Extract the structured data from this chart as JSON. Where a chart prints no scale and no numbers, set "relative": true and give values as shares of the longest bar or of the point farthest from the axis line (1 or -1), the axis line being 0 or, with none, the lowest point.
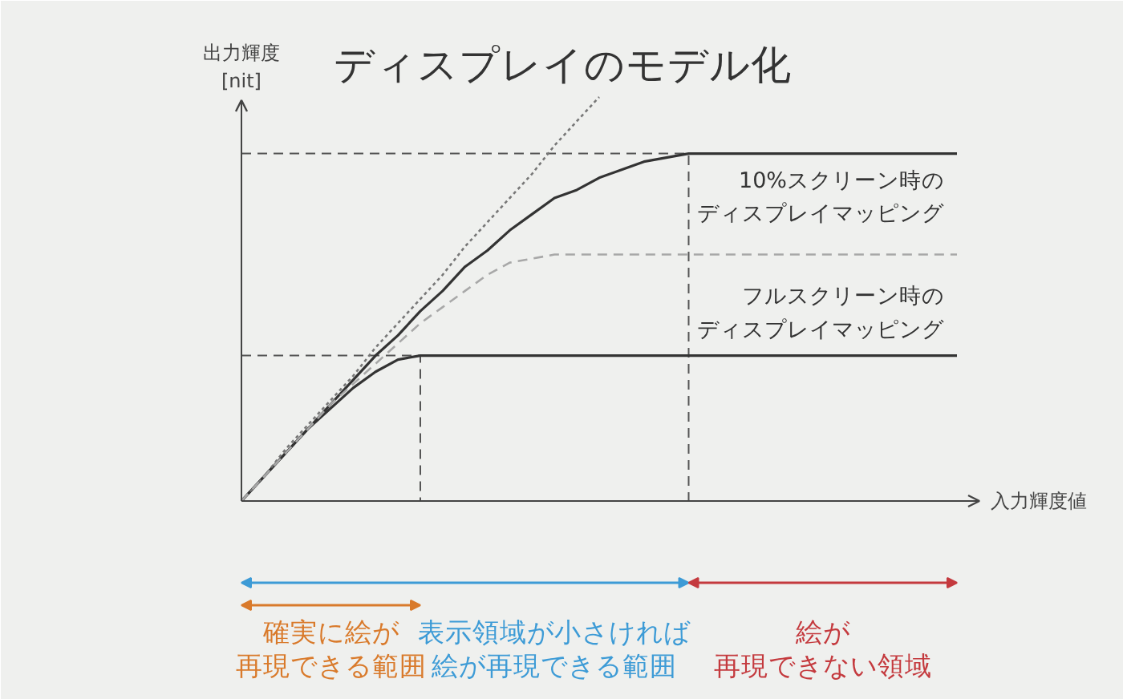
{
  "chart_data": {
    "type": "line",
    "title": "ディスプレイのモデル化",
    "xlabel": "入力輝度値",
    "ylabel": "出力輝度\n[nit]",
    "relative": true,
    "categories": [
      null,
      null,
      null,
      null,
      null,
      null,
      null,
      null,
      null,
      null,
      null,
      null,
      null,
      null,
      null,
      null,
      null,
      null,
      null,
      null,
      null,
      null,
      null,
      null,
      null,
      null,
      null,
      null,
      null,
      null,
      null,
      null,
      null
    ],
    "series": [
      {
        "name": "10%スクリーン時のディスプレイマッピング",
        "color": "#333333",
        "values": [
          0,
          0.06,
          0.12,
          0.18,
          0.24,
          0.3,
          0.36,
          0.41,
          0.47,
          0.52,
          0.58,
          0.62,
          0.67,
          0.71,
          0.75,
          0.77,
          0.8,
          0.82,
          0.84,
          0.85,
          0.86,
          0.86,
          0.86,
          0.86,
          0.86,
          0.86,
          0.86,
          0.86,
          0.86,
          0.86,
          0.86,
          0.86,
          0.86
        ]
      },
      {
        "name": "フルスクリーン時のディスプレイマッピング",
        "color": "#333333",
        "values": [
          0,
          0.06,
          0.12,
          0.18,
          0.23,
          0.28,
          0.32,
          0.35,
          0.36,
          0.36,
          0.36,
          0.36,
          0.36,
          0.36,
          0.36,
          0.36,
          0.36,
          0.36,
          0.36,
          0.36,
          0.36,
          0.36,
          0.36,
          0.36,
          0.36,
          0.36,
          0.36,
          0.36,
          0.36,
          0.36,
          0.36,
          0.36,
          0.36
        ]
      },
      {
        "color": "#777777",
        "line_style": "dotted",
        "values": [
          0,
          0.06,
          0.13,
          0.19,
          0.25,
          0.31,
          0.38,
          0.44,
          0.5,
          0.56,
          0.63,
          0.69,
          0.75,
          0.81,
          0.88,
          0.94,
          1,
          null,
          null,
          null,
          null,
          null,
          null,
          null,
          null,
          null,
          null,
          null,
          null,
          null,
          null,
          null,
          null
        ]
      },
      {
        "color": "#a8a8a8",
        "line_style": "dashed",
        "values": [
          0,
          0.06,
          0.12,
          0.18,
          0.24,
          0.29,
          0.34,
          0.39,
          0.44,
          0.48,
          0.52,
          0.56,
          0.59,
          0.6,
          0.61,
          0.61,
          0.61,
          0.61,
          0.61,
          0.61,
          0.61,
          0.61,
          0.61,
          0.61,
          0.61,
          0.61,
          0.61,
          0.61,
          0.61,
          0.61,
          0.61,
          0.61,
          0.61
        ]
      }
    ],
    "ref_lines": [
      {
        "axis": "y",
        "value": 0.86,
        "color": "#555555",
        "line_style": "dashed"
      },
      {
        "axis": "y",
        "value": 0.36,
        "color": "#555555",
        "line_style": "dashed"
      }
    ],
    "annotations": [
      "確実に絵が",
      "再現できる範囲",
      "表示領域が小さければ",
      "絵が再現できる範囲",
      "絵が",
      "再現できない領域"
    ]
  }
}
